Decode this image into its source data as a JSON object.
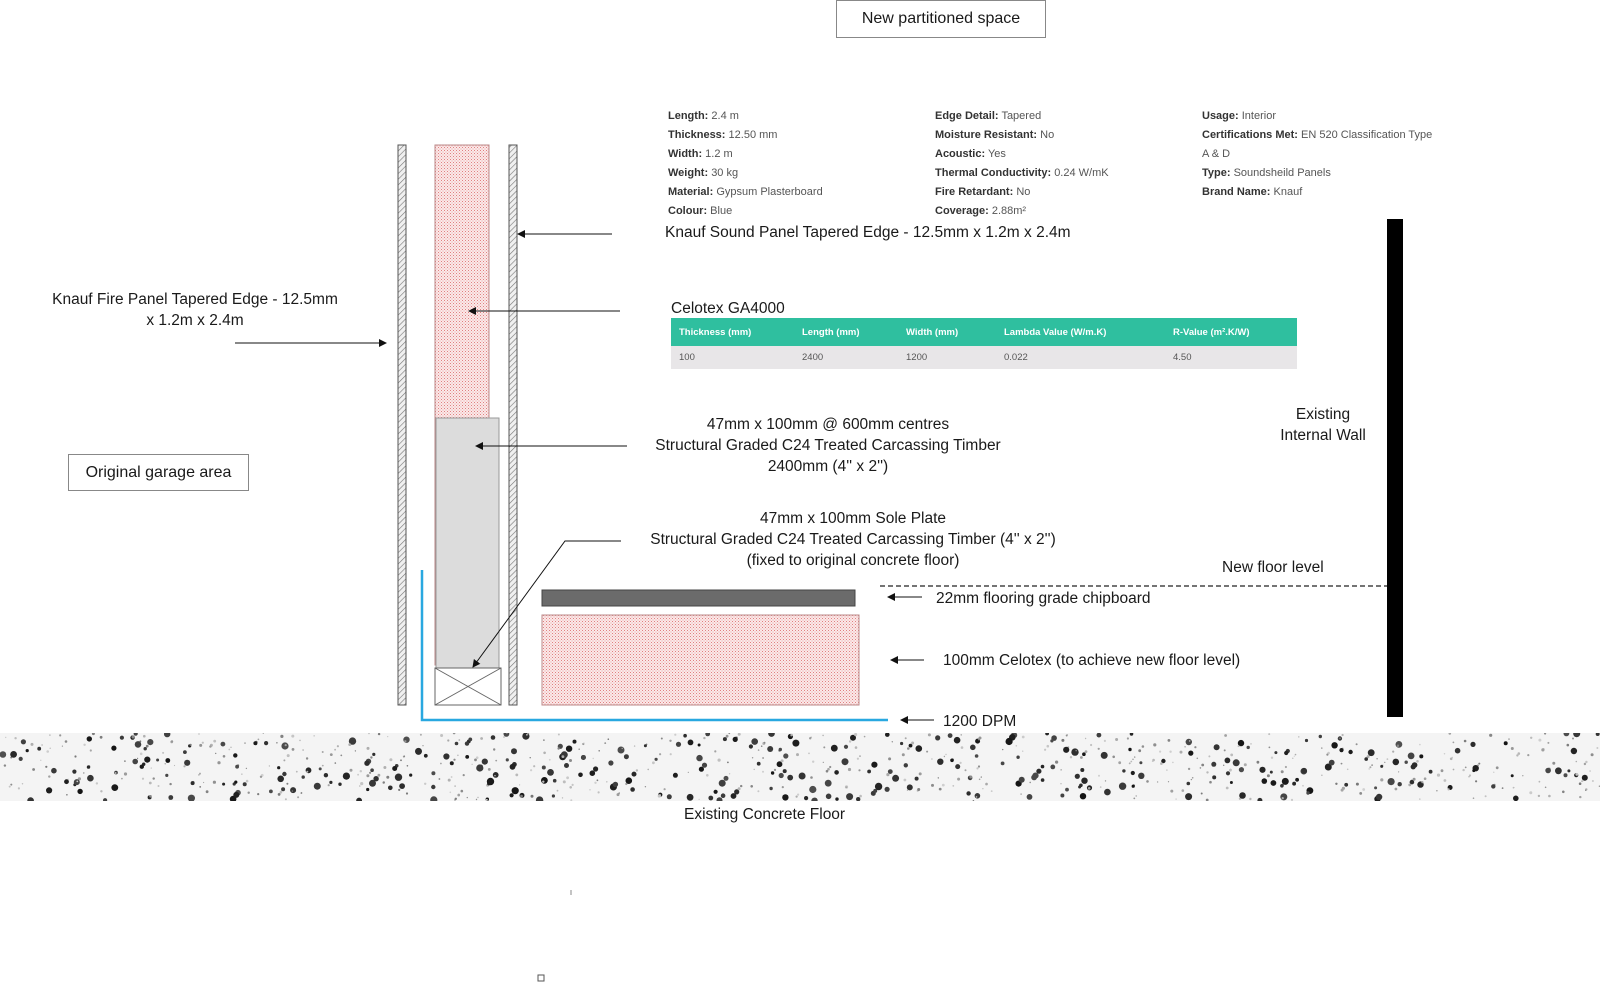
{
  "labels": {
    "new_space": "New partitioned space",
    "original_area": "Original garage area",
    "fire_panel_line1": "Knauf Fire Panel Tapered Edge - 12.5mm",
    "fire_panel_line2": "x 1.2m x 2.4m",
    "sound_panel": "Knauf Sound Panel Tapered Edge - 12.5mm x 1.2m x 2.4m",
    "celotex_title": "Celotex GA4000",
    "timber_line1": "47mm x 100mm @ 600mm centres",
    "timber_line2": "Structural Graded C24 Treated Carcassing Timber",
    "timber_line3": "2400mm (4'' x 2'')",
    "sole_line1": "47mm x 100mm Sole Plate",
    "sole_line2": "Structural Graded C24 Treated Carcassing Timber (4'' x 2'')",
    "sole_line3": "(fixed to original concrete floor)",
    "existing_wall_line1": "Existing",
    "existing_wall_line2": "Internal Wall",
    "new_floor_level": "New floor level",
    "chipboard": "22mm flooring grade chipboard",
    "celotex_floor": "100mm Celotex (to achieve new floor level)",
    "dpm": "1200 DPM",
    "concrete": "Existing Concrete Floor"
  },
  "specs": {
    "col1": [
      {
        "key": "Length:",
        "value": "2.4 m"
      },
      {
        "key": "Thickness:",
        "value": "12.50 mm"
      },
      {
        "key": "Width:",
        "value": "1.2 m"
      },
      {
        "key": "Weight:",
        "value": "30 kg"
      },
      {
        "key": "Material:",
        "value": "Gypsum Plasterboard"
      },
      {
        "key": "Colour:",
        "value": "Blue"
      }
    ],
    "col2": [
      {
        "key": "Edge Detail:",
        "value": "Tapered"
      },
      {
        "key": "Moisture Resistant:",
        "value": "No"
      },
      {
        "key": "Acoustic:",
        "value": "Yes"
      },
      {
        "key": "Thermal Conductivity:",
        "value": "0.24 W/mK"
      },
      {
        "key": "Fire Retardant:",
        "value": "No"
      },
      {
        "key": "Coverage:",
        "value": "2.88m²"
      }
    ],
    "col3": [
      {
        "key": "Usage:",
        "value": "Interior"
      },
      {
        "key": "Certifications Met:",
        "value": "EN 520 Classification Type"
      },
      {
        "key": "",
        "value": "A & D"
      },
      {
        "key": "Type:",
        "value": "Soundsheild Panels"
      },
      {
        "key": "Brand Name:",
        "value": "Knauf"
      }
    ]
  },
  "celotex_table": {
    "headers": [
      "Thickness (mm)",
      "Length (mm)",
      "Width (mm)",
      "Lambda Value (W/m.K)",
      "R-Value (m².K/W)"
    ],
    "row": [
      "100",
      "2400",
      "1200",
      "0.022",
      "4.50"
    ]
  },
  "colors": {
    "dpm": "#29a8e0",
    "table_header": "#2fbf9f",
    "insulation_dot": "#e08080",
    "chipboard": "#6b6b6b",
    "wall": "#000000"
  }
}
